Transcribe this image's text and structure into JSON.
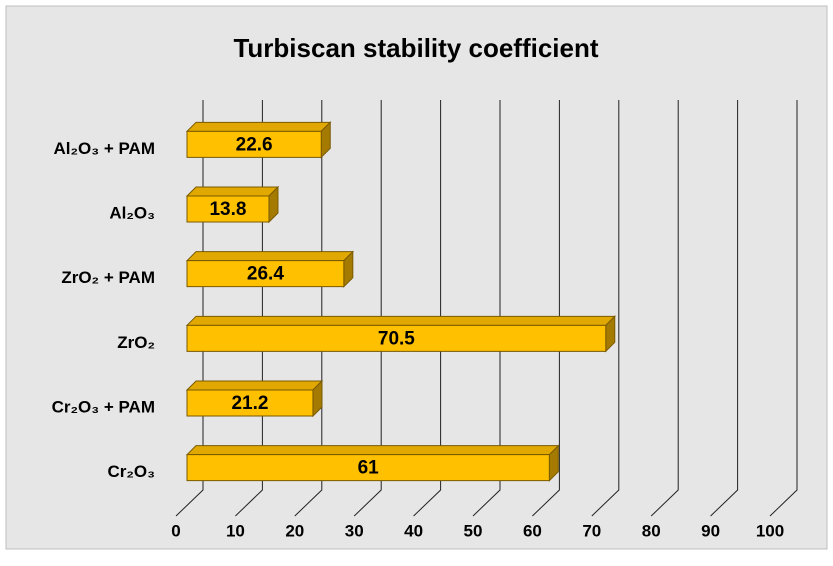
{
  "chart_data": {
    "type": "bar",
    "orientation": "horizontal",
    "title": "Turbiscan stability coefficient",
    "categories": [
      "Al₂O₃ + PAM",
      "Al₂O₃",
      "ZrO₂ + PAM",
      "ZrO₂",
      "Cr₂O₃ + PAM",
      "Cr₂O₃"
    ],
    "values": [
      22.6,
      13.8,
      26.4,
      70.5,
      21.2,
      61
    ],
    "color": "#ffc000",
    "xlim": [
      0,
      100
    ],
    "xticks": [
      0,
      10,
      20,
      30,
      40,
      50,
      60,
      70,
      80,
      90,
      100
    ],
    "grid": true
  }
}
